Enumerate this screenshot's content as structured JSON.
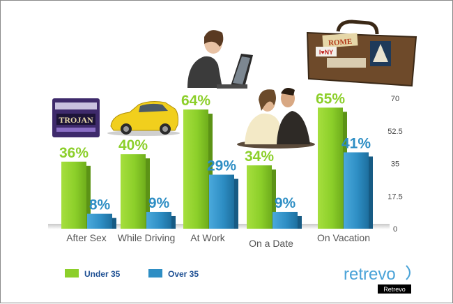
{
  "chart_data": {
    "type": "bar",
    "categories": [
      "After Sex",
      "While Driving",
      "At Work",
      "On a Date",
      "On Vacation"
    ],
    "series": [
      {
        "name": "Under 35",
        "values": [
          36,
          40,
          64,
          34,
          65
        ],
        "labels": [
          "36%",
          "40%",
          "64%",
          "34%",
          "65%"
        ],
        "color": "#8ccf2a"
      },
      {
        "name": "Over 35",
        "values": [
          8,
          9,
          29,
          9,
          41
        ],
        "labels": [
          "8%",
          "9%",
          "29%",
          "9%",
          "41%"
        ],
        "color": "#2e8ec4"
      }
    ],
    "y_ticks": [
      "70",
      "52.5",
      "35",
      "17.5",
      "0"
    ],
    "ylim": [
      0,
      70
    ],
    "legend_position": "bottom-left"
  },
  "brand": {
    "logo_text": "retrevo",
    "tag_text": "Retrevo"
  },
  "pictures": [
    "condom box",
    "yellow car",
    "woman with laptop",
    "couple on a date",
    "travel suitcase"
  ],
  "colors": {
    "under35": "#8ccf2a",
    "over35": "#2e8ec4",
    "legend_text": "#1d4f93",
    "brand": "#4aa3d8"
  }
}
